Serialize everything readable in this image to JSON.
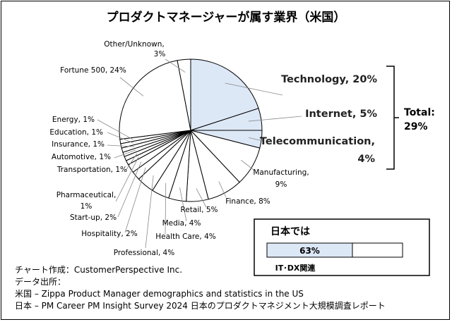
{
  "chart_data": {
    "type": "pie",
    "title": "プロダクトマネージャーが属す業界（米国）",
    "slices": [
      {
        "label": "Technology, 20%",
        "value": 20,
        "highlight": true
      },
      {
        "label": "Internet, 5%",
        "value": 5,
        "highlight": true
      },
      {
        "label": "Telecommunication, 4%",
        "value": 4,
        "highlight": true
      },
      {
        "label": "Manufacturing, 9%",
        "value": 9
      },
      {
        "label": "Finance, 8%",
        "value": 8
      },
      {
        "label": "Retail, 5%",
        "value": 5
      },
      {
        "label": "Media, 4%",
        "value": 4
      },
      {
        "label": "Health Care, 4%",
        "value": 4
      },
      {
        "label": "Professional, 4%",
        "value": 4
      },
      {
        "label": "Hospitality, 2%",
        "value": 2
      },
      {
        "label": "Start-up, 2%",
        "value": 2
      },
      {
        "label": "Pharmaceutical, 1%",
        "value": 1
      },
      {
        "label": "Transportation, 1%",
        "value": 1
      },
      {
        "label": "Automotive, 1%",
        "value": 1
      },
      {
        "label": "Insurance, 1%",
        "value": 1
      },
      {
        "label": "Education, 1%",
        "value": 1
      },
      {
        "label": "Energy, 1%",
        "value": 1
      },
      {
        "label": "Fortune 500, 24%",
        "value": 24
      },
      {
        "label": "Other/Unknown, 3%",
        "value": 3
      }
    ],
    "total_label": "Total:",
    "total_value": "29%",
    "colors": {
      "highlight": "#dde8f7",
      "normal": "#ffffff",
      "stroke": "#000000",
      "bar_fill": "#dde8f7"
    }
  },
  "japan_box": {
    "title": "日本では",
    "value": 63,
    "value_label": "63%",
    "caption": "IT･DX関連"
  },
  "footer": {
    "line1": "チャート作成：CustomerPerspective Inc.",
    "line2": "データ出所：",
    "line3": "米国 – Zippa Product Manager demographics and statistics in the US",
    "line4": "日本 – PM Career PM Insight Survey 2024 日本のプロダクトマネジメント大規模調査レポート"
  }
}
